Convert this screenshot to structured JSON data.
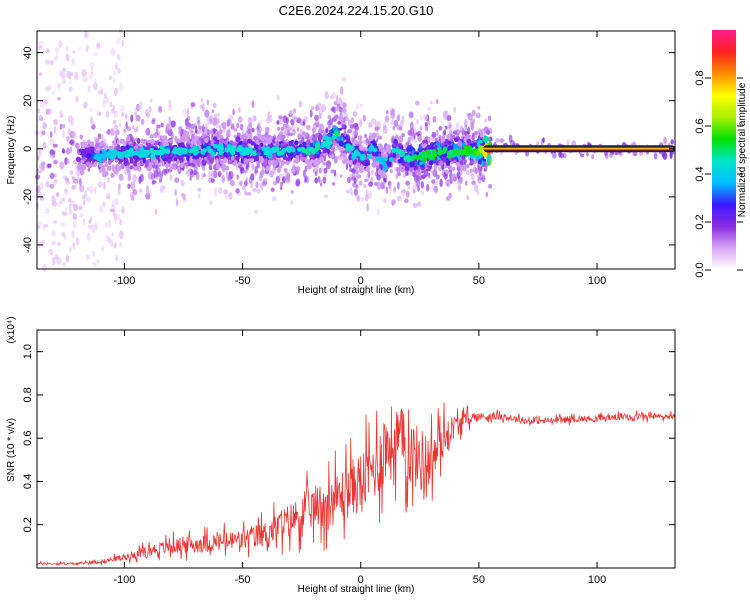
{
  "figure": {
    "title": "C2E6.2024.224.15.20.G10"
  },
  "chart_data": [
    {
      "type": "heatmap",
      "title": "C2E6.2024.224.15.20.G10",
      "xlabel": "Height of straight line (km)",
      "ylabel": "Frequency (Hz)",
      "xlim": [
        -137,
        133
      ],
      "ylim": [
        -50,
        49
      ],
      "xticks": [
        "-100",
        "-50",
        "0",
        "50",
        "100"
      ],
      "yticks": [
        "40",
        "20",
        "0",
        "-20",
        "-40"
      ],
      "colorbar": {
        "label": "Normalized spectral amplitude",
        "range": [
          0.0,
          1.0
        ],
        "ticks": [
          "0.0",
          "0.2",
          "0.4",
          "0.6",
          "0.8"
        ],
        "colors": [
          "#ffffff",
          "#d9a6f5",
          "#8a2be2",
          "#3a1aff",
          "#00bfff",
          "#00e6c8",
          "#00e000",
          "#aaf000",
          "#ffff00",
          "#ff8c00",
          "#ff2020",
          "#ff1a8c"
        ]
      },
      "ridge": {
        "x": [
          -110,
          -100,
          -90,
          -80,
          -70,
          -60,
          -50,
          -40,
          -30,
          -20,
          -15,
          -12,
          -10,
          -7,
          -3,
          0,
          3,
          5,
          7,
          10,
          15,
          20,
          25,
          30,
          40,
          50,
          55,
          60,
          80,
          100,
          120,
          133
        ],
        "frequency": [
          -3,
          -2,
          -2,
          -1,
          -1,
          0,
          -1,
          -1,
          -1,
          0,
          2,
          5,
          7,
          4,
          -2,
          -3,
          -5,
          2,
          -3,
          -7,
          0,
          -4,
          -3,
          -2,
          -1,
          -1,
          0,
          0,
          0,
          0,
          0,
          0
        ],
        "amplitude": [
          0.35,
          0.4,
          0.42,
          0.4,
          0.42,
          0.4,
          0.42,
          0.4,
          0.42,
          0.44,
          0.42,
          0.44,
          0.48,
          0.45,
          0.4,
          0.42,
          0.35,
          0.4,
          0.38,
          0.35,
          0.42,
          0.45,
          0.5,
          0.5,
          0.48,
          0.55,
          0.9,
          0.95,
          0.95,
          0.95,
          0.95,
          0.95
        ]
      }
    },
    {
      "type": "line",
      "xlabel": "Height of straight line (km)",
      "ylabel": "SNR (10 * v/v)",
      "y_multiplier": "(x10⁴)",
      "xlim": [
        -137,
        133
      ],
      "ylim": [
        0,
        1.1
      ],
      "xticks": [
        "-100",
        "-50",
        "0",
        "50",
        "100"
      ],
      "yticks": [
        "0.2",
        "0.4",
        "0.6",
        "0.8",
        "1.0"
      ],
      "series": [
        {
          "color": "#ee3333",
          "x": [
            -137,
            -120,
            -110,
            -100,
            -90,
            -80,
            -70,
            -60,
            -50,
            -40,
            -30,
            -20,
            -10,
            0,
            5,
            10,
            15,
            20,
            25,
            30,
            35,
            40,
            45,
            50,
            60,
            70,
            80,
            90,
            100,
            110,
            120,
            133
          ],
          "mean": [
            0.02,
            0.02,
            0.03,
            0.05,
            0.08,
            0.1,
            0.11,
            0.12,
            0.13,
            0.16,
            0.22,
            0.28,
            0.32,
            0.4,
            0.45,
            0.55,
            0.6,
            0.55,
            0.5,
            0.5,
            0.6,
            0.66,
            0.69,
            0.7,
            0.7,
            0.68,
            0.68,
            0.69,
            0.69,
            0.7,
            0.7,
            0.7
          ],
          "spread": [
            0.01,
            0.01,
            0.015,
            0.03,
            0.05,
            0.07,
            0.08,
            0.09,
            0.1,
            0.12,
            0.16,
            0.2,
            0.24,
            0.28,
            0.3,
            0.35,
            0.35,
            0.32,
            0.3,
            0.25,
            0.18,
            0.1,
            0.06,
            0.04,
            0.03,
            0.03,
            0.03,
            0.03,
            0.03,
            0.03,
            0.03,
            0.03
          ],
          "sample_step": 0.25
        }
      ]
    }
  ]
}
